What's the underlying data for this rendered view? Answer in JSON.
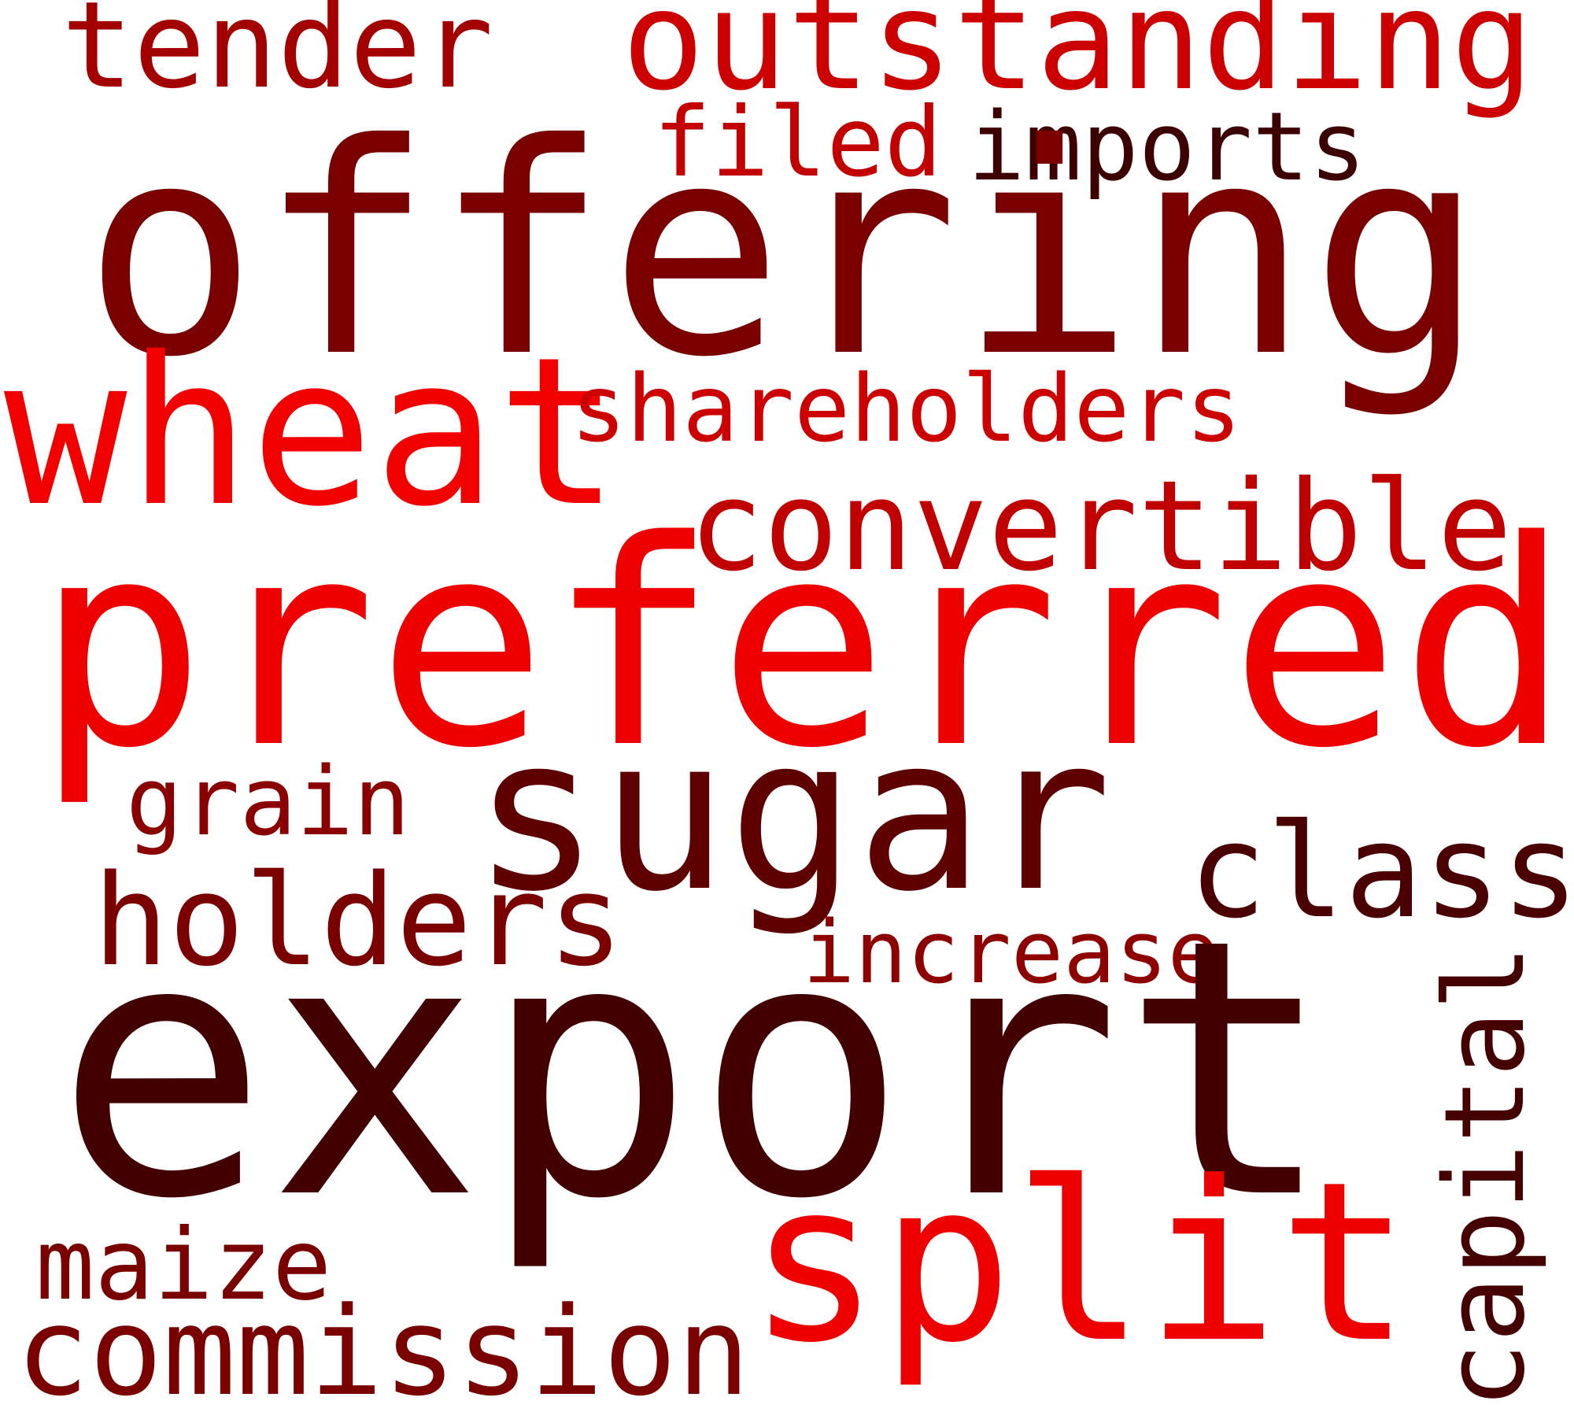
{
  "words": [
    {
      "text": "tender",
      "color": "#a30000"
    },
    {
      "text": "outstanding",
      "color": "#cc0000"
    },
    {
      "text": "filed",
      "color": "#c20000"
    },
    {
      "text": "imports",
      "color": "#3d0000"
    },
    {
      "text": "offering",
      "color": "#7a0000"
    },
    {
      "text": "wheat",
      "color": "#f20000"
    },
    {
      "text": "shareholders",
      "color": "#cc0000"
    },
    {
      "text": "convertible",
      "color": "#c00000"
    },
    {
      "text": "preferred",
      "color": "#ee0000"
    },
    {
      "text": "grain",
      "color": "#8a0000"
    },
    {
      "text": "sugar",
      "color": "#5e0000"
    },
    {
      "text": "class",
      "color": "#4a0000"
    },
    {
      "text": "holders",
      "color": "#7a0000"
    },
    {
      "text": "increase",
      "color": "#8e0000"
    },
    {
      "text": "export",
      "color": "#430000"
    },
    {
      "text": "capital",
      "color": "#450000"
    },
    {
      "text": "maize",
      "color": "#7a0000"
    },
    {
      "text": "split",
      "color": "#ee0000"
    },
    {
      "text": "commission",
      "color": "#7a0000"
    }
  ]
}
